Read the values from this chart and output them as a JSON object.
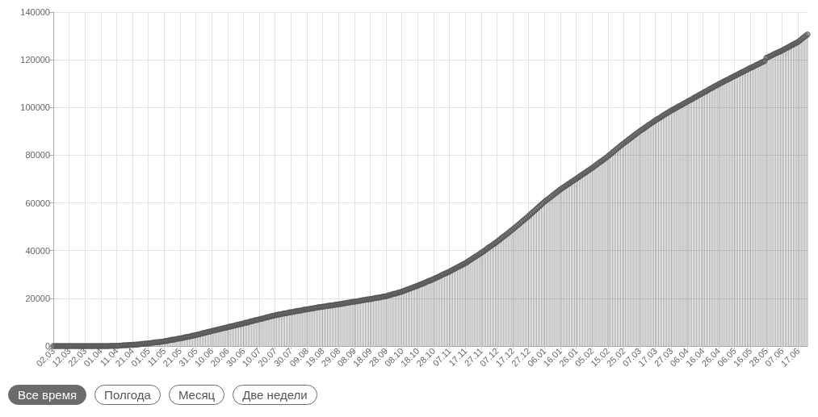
{
  "chart_data": {
    "type": "lollipop",
    "categories": [
      "02.03",
      null,
      null,
      null,
      null,
      null,
      null,
      null,
      null,
      null,
      "12.03",
      null,
      null,
      null,
      null,
      null,
      null,
      null,
      null,
      null,
      "22.03",
      null,
      null,
      null,
      null,
      null,
      null,
      null,
      null,
      null,
      "01.04",
      null,
      null,
      null,
      null,
      null,
      null,
      null,
      null,
      null,
      "11.04",
      null,
      null,
      null,
      null,
      null,
      null,
      null,
      null,
      null,
      "21.04",
      null,
      null,
      null,
      null,
      null,
      null,
      null,
      null,
      null,
      "01.05",
      null,
      null,
      null,
      null,
      null,
      null,
      null,
      null,
      null,
      "11.05",
      null,
      null,
      null,
      null,
      null,
      null,
      null,
      null,
      null,
      "21.05",
      null,
      null,
      null,
      null,
      null,
      null,
      null,
      null,
      null,
      "31.05",
      null,
      null,
      null,
      null,
      null,
      null,
      null,
      null,
      null,
      "10.06",
      null,
      null,
      null,
      null,
      null,
      null,
      null,
      null,
      null,
      "20.06",
      null,
      null,
      null,
      null,
      null,
      null,
      null,
      null,
      null,
      "30.06",
      null,
      null,
      null,
      null,
      null,
      null,
      null,
      null,
      null,
      "10.07",
      null,
      null,
      null,
      null,
      null,
      null,
      null,
      null,
      null,
      "20.07",
      null,
      null,
      null,
      null,
      null,
      null,
      null,
      null,
      null,
      "30.07",
      null,
      null,
      null,
      null,
      null,
      null,
      null,
      null,
      null,
      "09.08",
      null,
      null,
      null,
      null,
      null,
      null,
      null,
      null,
      null,
      "19.08",
      null,
      null,
      null,
      null,
      null,
      null,
      null,
      null,
      null,
      "29.08",
      null,
      null,
      null,
      null,
      null,
      null,
      null,
      null,
      null,
      "08.09",
      null,
      null,
      null,
      null,
      null,
      null,
      null,
      null,
      null,
      "18.09",
      null,
      null,
      null,
      null,
      null,
      null,
      null,
      null,
      null,
      "28.09",
      null,
      null,
      null,
      null,
      null,
      null,
      null,
      null,
      null,
      "08.10",
      null,
      null,
      null,
      null,
      null,
      null,
      null,
      null,
      null,
      "18.10",
      null,
      null,
      null,
      null,
      null,
      null,
      null,
      null,
      null,
      "28.10",
      null,
      null,
      null,
      null,
      null,
      null,
      null,
      null,
      null,
      "07.11",
      null,
      null,
      null,
      null,
      null,
      null,
      null,
      null,
      null,
      "17.11",
      null,
      null,
      null,
      null,
      null,
      null,
      null,
      null,
      null,
      "27.11",
      null,
      null,
      null,
      null,
      null,
      null,
      null,
      null,
      null,
      "07.12",
      null,
      null,
      null,
      null,
      null,
      null,
      null,
      null,
      null,
      "17.12",
      null,
      null,
      null,
      null,
      null,
      null,
      null,
      null,
      null,
      "27.12",
      null,
      null,
      null,
      null,
      null,
      null,
      null,
      null,
      null,
      "06.01",
      null,
      null,
      null,
      null,
      null,
      null,
      null,
      null,
      null,
      "16.01",
      null,
      null,
      null,
      null,
      null,
      null,
      null,
      null,
      null,
      "26.01",
      null,
      null,
      null,
      null,
      null,
      null,
      null,
      null,
      null,
      "05.02",
      null,
      null,
      null,
      null,
      null,
      null,
      null,
      null,
      null,
      "15.02",
      null,
      null,
      null,
      null,
      null,
      null,
      null,
      null,
      null,
      "25.02",
      null,
      null,
      null,
      null,
      null,
      null,
      null,
      null,
      null,
      "07.03",
      null,
      null,
      null,
      null,
      null,
      null,
      null,
      null,
      null,
      "17.03",
      null,
      null,
      null,
      null,
      null,
      null,
      null,
      null,
      null,
      "27.03",
      null,
      null,
      null,
      null,
      null,
      null,
      null,
      null,
      null,
      "06.04",
      null,
      null,
      null,
      null,
      null,
      null,
      null,
      null,
      null,
      "16.04",
      null,
      null,
      null,
      null,
      null,
      null,
      null,
      null,
      null,
      "26.04",
      null,
      null,
      null,
      null,
      null,
      null,
      null,
      null,
      null,
      "06.05",
      null,
      null,
      null,
      null,
      null,
      null,
      null,
      null,
      null,
      "16.05",
      null,
      null,
      null,
      null,
      null,
      null,
      null,
      null,
      null,
      "28.05",
      null,
      null,
      null,
      null,
      null,
      null,
      null,
      null,
      null,
      "07.06",
      null,
      null,
      null,
      null,
      null,
      null,
      null,
      null,
      null,
      "17.06",
      null,
      null,
      null,
      null,
      null,
      null
    ],
    "values": [
      0,
      0,
      0,
      0,
      0,
      0,
      0,
      0,
      0,
      0,
      0,
      0,
      0,
      0,
      0,
      0,
      0,
      0,
      0,
      0,
      0,
      0,
      0,
      0,
      0,
      0,
      0,
      0,
      0,
      0,
      0,
      0,
      0,
      0,
      0,
      0,
      100,
      100,
      100,
      100,
      100,
      100,
      200,
      200,
      300,
      300,
      300,
      400,
      400,
      500,
      500,
      600,
      600,
      700,
      700,
      800,
      900,
      900,
      1000,
      1000,
      1100,
      1200,
      1300,
      1400,
      1500,
      1600,
      1600,
      1700,
      1800,
      1900,
      2000,
      2100,
      2200,
      2400,
      2500,
      2600,
      2700,
      2800,
      3000,
      3100,
      3200,
      3300,
      3500,
      3600,
      3800,
      3900,
      4000,
      4200,
      4300,
      4500,
      4600,
      4800,
      4900,
      5100,
      5300,
      5500,
      5600,
      5800,
      6000,
      6100,
      6300,
      6500,
      6600,
      6800,
      6900,
      7100,
      7300,
      7400,
      7600,
      7700,
      7900,
      8100,
      8200,
      8400,
      8500,
      8700,
      8900,
      9000,
      9200,
      9300,
      9500,
      9700,
      9800,
      10000,
      10200,
      10400,
      10500,
      10700,
      10900,
      11000,
      11200,
      11400,
      11500,
      11700,
      11900,
      12100,
      12200,
      12400,
      12600,
      12700,
      12900,
      13000,
      13200,
      13300,
      13400,
      13600,
      13700,
      13800,
      13900,
      14100,
      14200,
      14300,
      14400,
      14600,
      14700,
      14800,
      14900,
      15000,
      15200,
      15300,
      15400,
      15500,
      15600,
      15700,
      15800,
      16000,
      16100,
      16200,
      16300,
      16400,
      16500,
      16600,
      16700,
      16800,
      16900,
      17000,
      17100,
      17200,
      17300,
      17400,
      17500,
      17600,
      17700,
      17800,
      17900,
      18100,
      18200,
      18300,
      18400,
      18500,
      18600,
      18700,
      18800,
      18900,
      19000,
      19200,
      19300,
      19400,
      19500,
      19600,
      19700,
      19800,
      19900,
      20100,
      20200,
      20300,
      20400,
      20500,
      20700,
      20800,
      20900,
      21100,
      21300,
      21500,
      21700,
      21900,
      22000,
      22200,
      22400,
      22600,
      22800,
      23100,
      23300,
      23600,
      23800,
      24100,
      24300,
      24600,
      24800,
      25100,
      25300,
      25600,
      25900,
      26100,
      26400,
      26700,
      27000,
      27300,
      27500,
      27800,
      28100,
      28400,
      28700,
      29000,
      29300,
      29700,
      30000,
      30300,
      30600,
      30900,
      31200,
      31600,
      31900,
      32300,
      32600,
      33000,
      33300,
      33700,
      34000,
      34400,
      34700,
      35100,
      35600,
      36000,
      36400,
      36900,
      37300,
      37700,
      38100,
      38600,
      39000,
      39500,
      39900,
      40400,
      40900,
      41400,
      41800,
      42300,
      42800,
      43200,
      43700,
      44200,
      44700,
      45300,
      45800,
      46300,
      46800,
      47300,
      47900,
      48400,
      48900,
      49500,
      50000,
      50600,
      51100,
      51700,
      52300,
      52800,
      53400,
      53900,
      54500,
      55100,
      55700,
      56300,
      56900,
      57500,
      58100,
      58700,
      59300,
      59900,
      60500,
      61000,
      61500,
      62000,
      62500,
      63100,
      63600,
      64100,
      64600,
      65100,
      65600,
      66100,
      66500,
      67000,
      67400,
      67900,
      68300,
      68800,
      69200,
      69700,
      70100,
      70600,
      71000,
      71500,
      71900,
      72400,
      72800,
      73300,
      73700,
      74200,
      74600,
      75100,
      75600,
      76100,
      76600,
      77100,
      77500,
      78000,
      78500,
      79000,
      79500,
      80100,
      80600,
      81200,
      81700,
      82300,
      82800,
      83400,
      83900,
      84500,
      85000,
      85500,
      86000,
      86500,
      87000,
      87500,
      88000,
      88500,
      89000,
      89500,
      90000,
      90500,
      90900,
      91400,
      91800,
      92300,
      92800,
      93200,
      93700,
      94100,
      94600,
      95000,
      95400,
      95800,
      96200,
      96700,
      97100,
      97500,
      97900,
      98300,
      98700,
      99100,
      99400,
      99800,
      100200,
      100600,
      100900,
      101300,
      101700,
      102000,
      102400,
      102800,
      103100,
      103500,
      103900,
      104300,
      104600,
      105000,
      105400,
      105700,
      106100,
      106500,
      106800,
      107200,
      107600,
      108000,
      108300,
      108700,
      109100,
      109400,
      109800,
      110100,
      110500,
      110800,
      111200,
      111500,
      111800,
      112200,
      112500,
      112900,
      113200,
      113500,
      113900,
      114200,
      114600,
      114900,
      115200,
      115600,
      115900,
      116300,
      116600,
      116900,
      117200,
      117600,
      117900,
      118200,
      118500,
      118900,
      119200,
      119500,
      120800,
      121100,
      121400,
      121700,
      122000,
      122400,
      122700,
      123000,
      123300,
      123600,
      123900,
      124300,
      124600,
      125000,
      125300,
      125700,
      126100,
      126400,
      126800,
      127100,
      127500,
      128000,
      128500,
      129100,
      129600,
      130100,
      130600
    ],
    "color": "#555555",
    "marker": "circle",
    "ylim": [
      0,
      140000
    ],
    "yticks": [
      0,
      20000,
      40000,
      60000,
      80000,
      100000,
      120000,
      140000
    ],
    "grid": true,
    "annotations": [
      "Все время",
      "Полгода",
      "Месяц",
      "Две недели"
    ]
  }
}
